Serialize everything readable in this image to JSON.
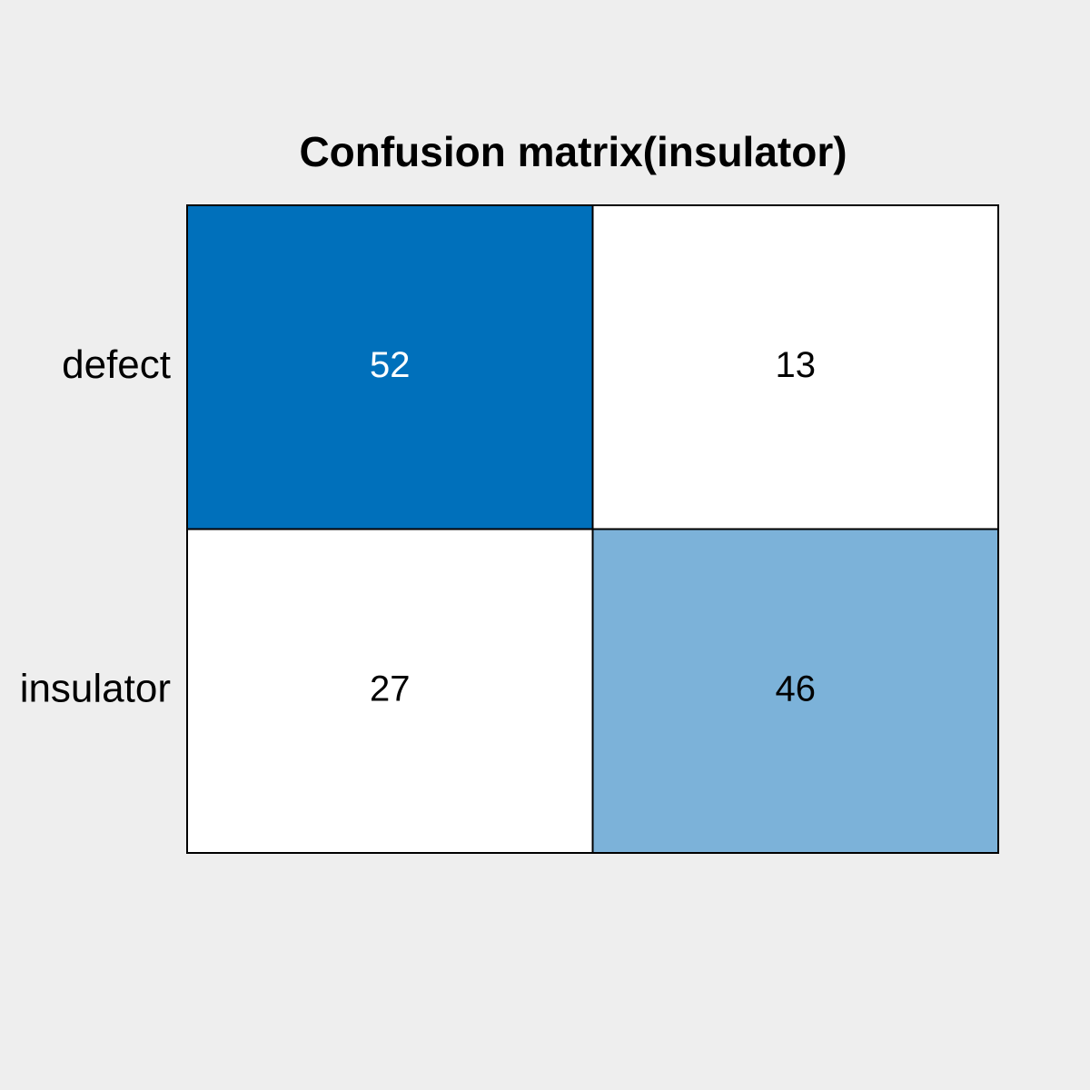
{
  "chart_data": {
    "type": "heatmap",
    "title": "Confusion matrix(insulator)",
    "row_labels": [
      "defect",
      "insulator"
    ],
    "col_labels": [],
    "values": [
      [
        52,
        13
      ],
      [
        27,
        46
      ]
    ],
    "cell_colors": [
      [
        "#0070bb",
        "#ffffff"
      ],
      [
        "#ffffff",
        "#7cb2d9"
      ]
    ],
    "text_colors": [
      [
        "#ffffff",
        "#000000"
      ],
      [
        "#000000",
        "#000000"
      ]
    ],
    "grid": true,
    "legend": "none"
  }
}
